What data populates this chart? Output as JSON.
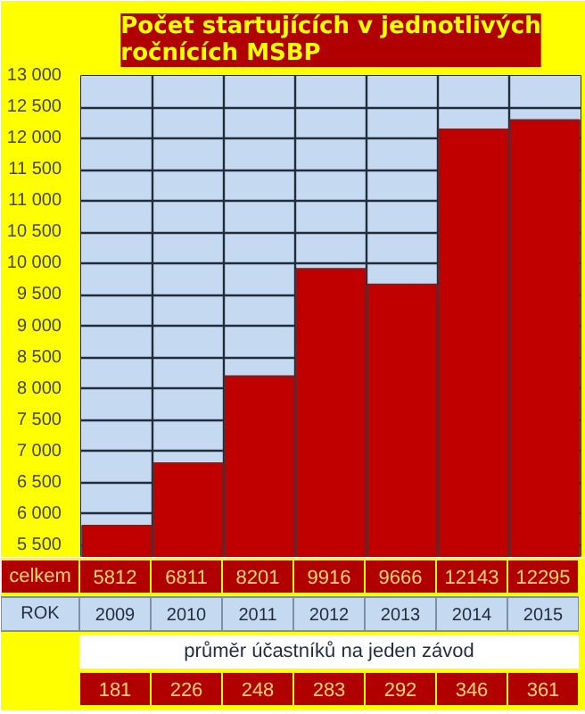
{
  "chart_data": {
    "type": "bar",
    "title": "Počet startujících v jednotlivých\nročnících MSBP",
    "categories": [
      "2009",
      "2010",
      "2011",
      "2012",
      "2013",
      "2014",
      "2015"
    ],
    "values": [
      5812,
      6811,
      8201,
      9916,
      9666,
      12143,
      12295
    ],
    "color": "#c00000",
    "ylim": [
      5300,
      13000
    ],
    "yticks": [
      {
        "value": 5500,
        "label": "5 500"
      },
      {
        "value": 6000,
        "label": "6 000"
      },
      {
        "value": 6500,
        "label": "6 500"
      },
      {
        "value": 7000,
        "label": "7 000"
      },
      {
        "value": 7500,
        "label": "7 500"
      },
      {
        "value": 8000,
        "label": "8 000"
      },
      {
        "value": 8500,
        "label": "8 500"
      },
      {
        "value": 9000,
        "label": "9 000"
      },
      {
        "value": 9500,
        "label": "9 500"
      },
      {
        "value": 10000,
        "label": "10 000"
      },
      {
        "value": 10500,
        "label": "10 500"
      },
      {
        "value": 11000,
        "label": "11 000"
      },
      {
        "value": 11500,
        "label": "11 500"
      },
      {
        "value": 12000,
        "label": "12 000"
      },
      {
        "value": 12500,
        "label": "12 500"
      },
      {
        "value": 13000,
        "label": "13 000"
      }
    ],
    "bands": [
      {
        "axis": "y",
        "from": 5300,
        "to": 13000,
        "color": "#c5d9f1"
      }
    ],
    "grid": true,
    "tick_labels": "y",
    "data_labels": true,
    "xlabel": "ROK",
    "annotations": [
      "celkem",
      "průměr účastníků na jeden závod",
      "181",
      "226",
      "248",
      "283",
      "292",
      "346",
      "361"
    ]
  }
}
